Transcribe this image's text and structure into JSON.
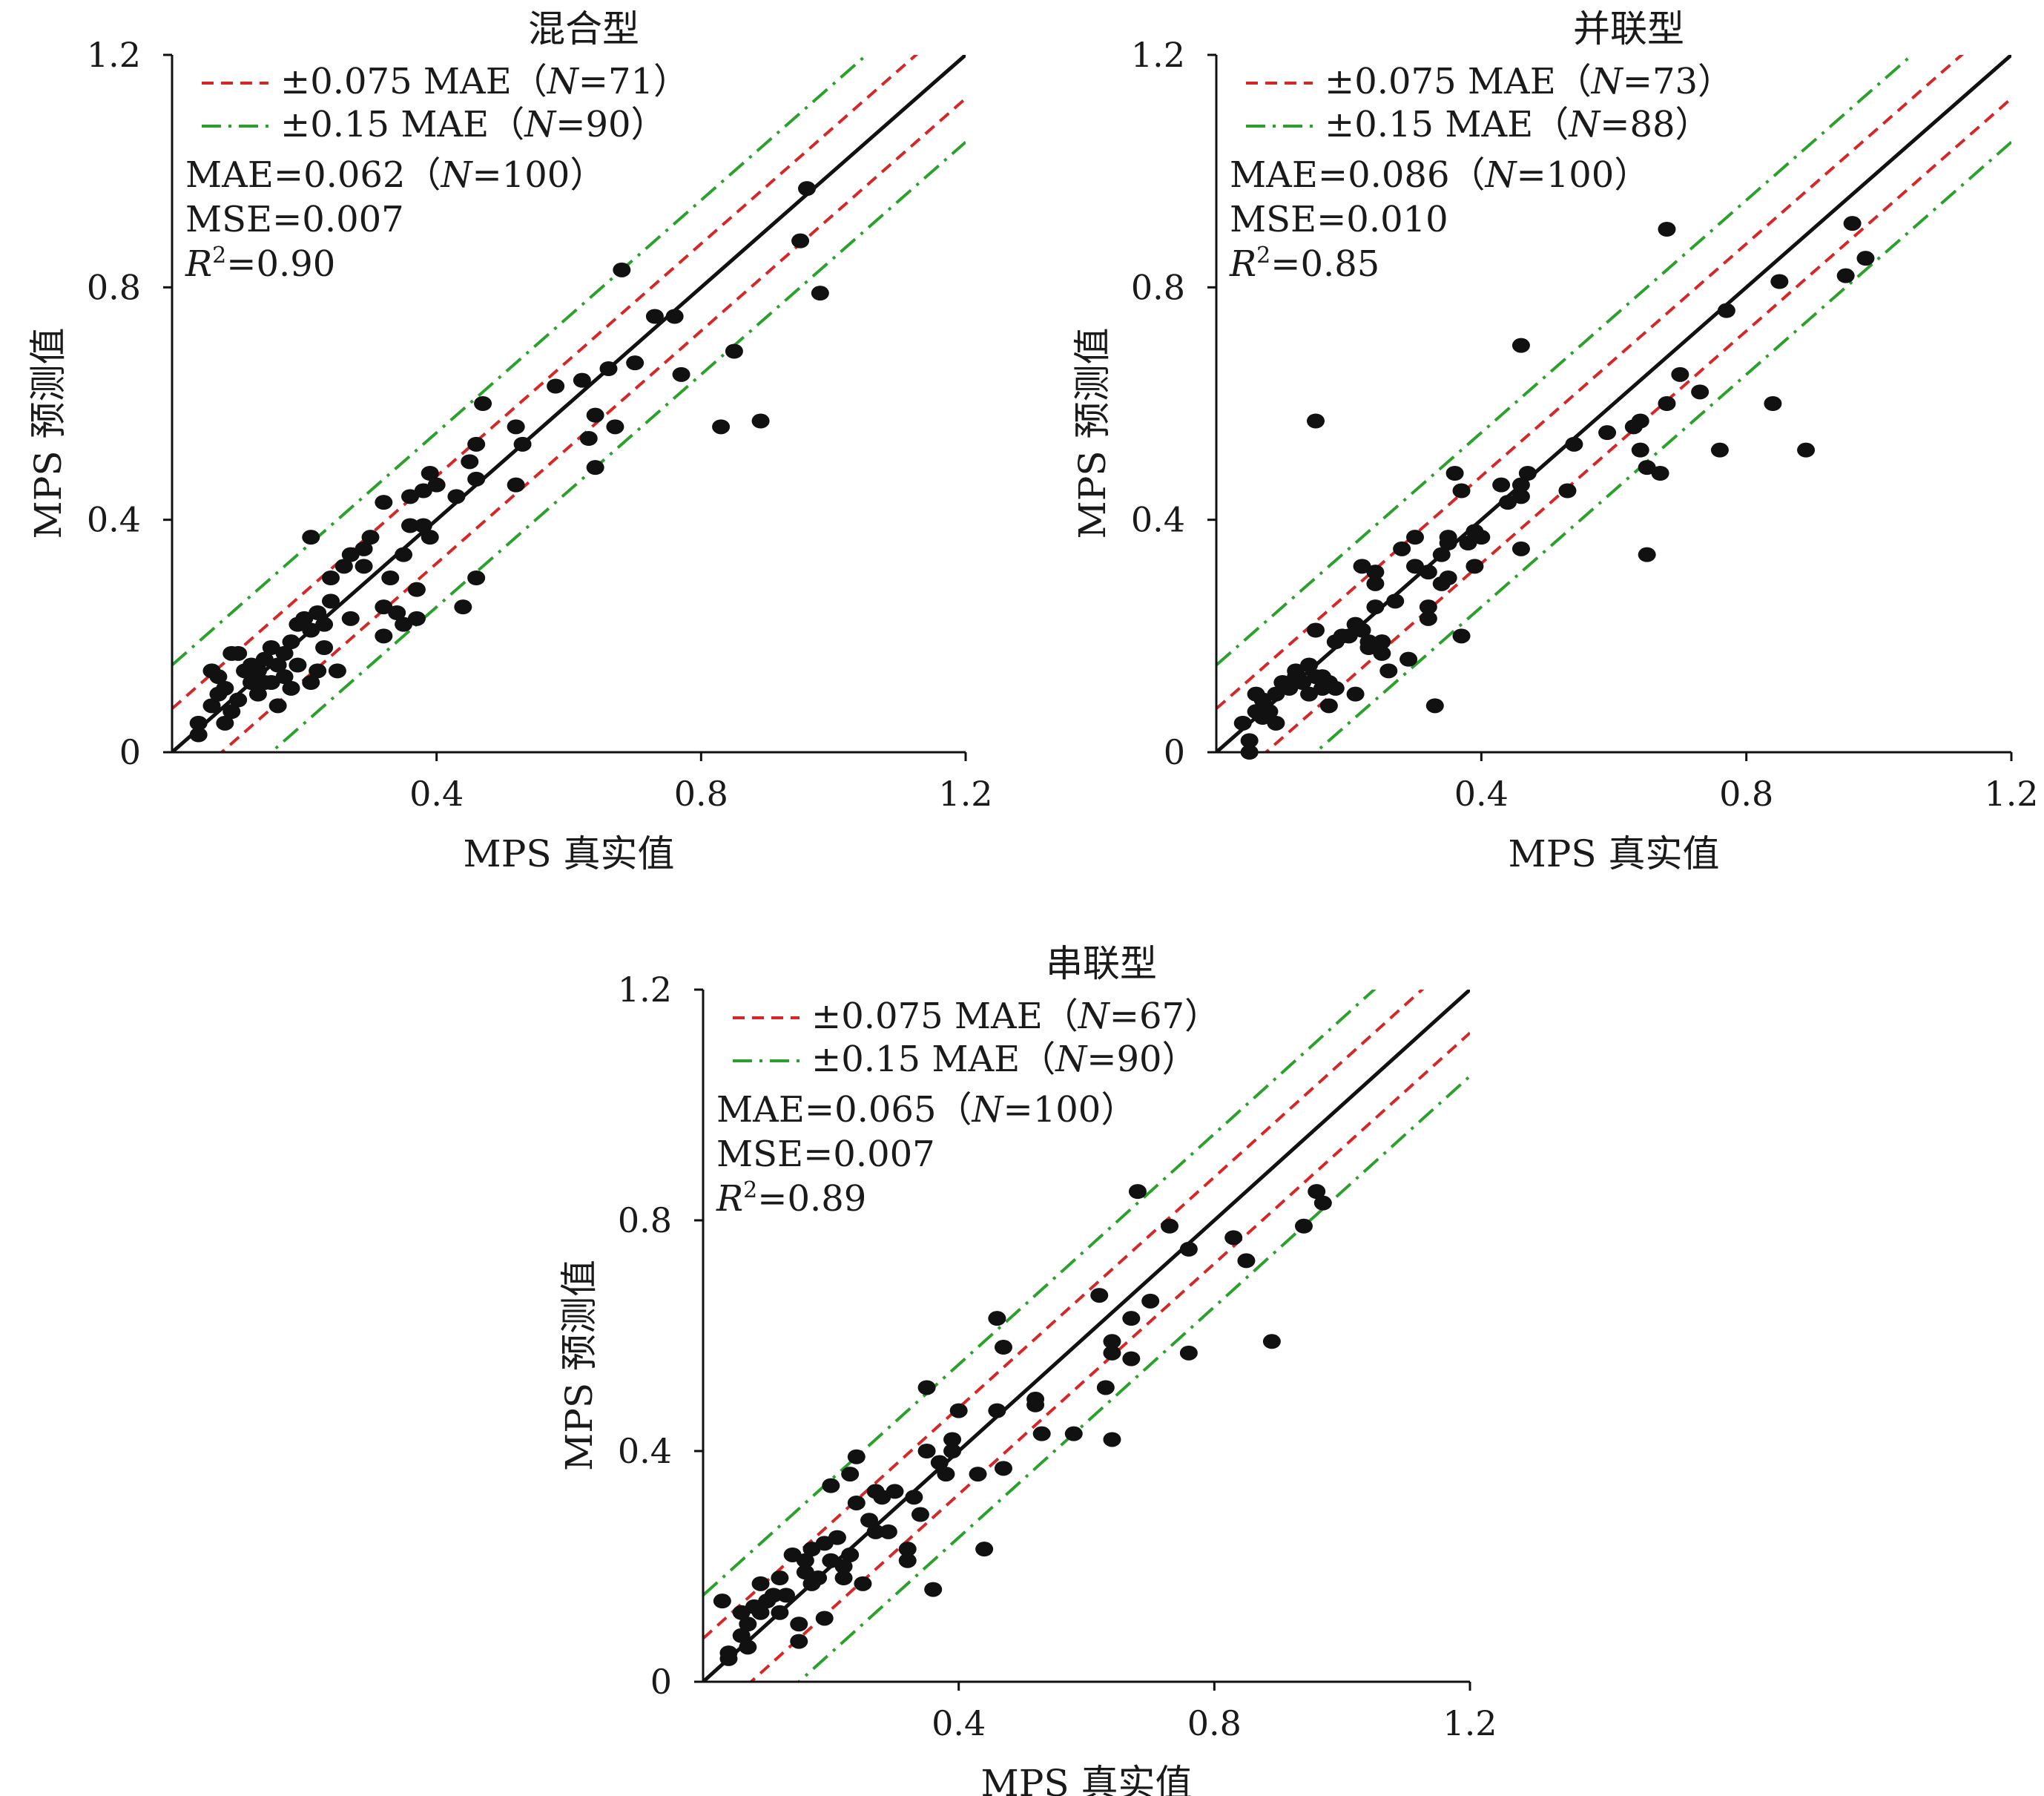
{
  "chart_data": [
    {
      "type": "scatter",
      "title": "混合型",
      "xlabel": "MPS 真实值",
      "ylabel": "MPS 预测值",
      "xlim": [
        0,
        1.2
      ],
      "ylim": [
        0,
        1.2
      ],
      "x_ticks": [
        "0.4",
        "0.8",
        "1.2"
      ],
      "y_ticks": [
        "0",
        "0.4",
        "0.8",
        "1.2"
      ],
      "legend": [
        {
          "label": "±0.075 MAE（N=71）",
          "style": "dashed",
          "color": "#d62728"
        },
        {
          "label": "±0.15 MAE（N=90）",
          "style": "dashdot",
          "color": "#2ca02c"
        }
      ],
      "stats": [
        "MAE=0.062（N=100）",
        "MSE=0.007",
        "R²=0.90"
      ],
      "bands": {
        "inner": 0.075,
        "outer": 0.15,
        "inner_color": "#d62728",
        "outer_color": "#2ca02c"
      },
      "points": [
        [
          0.04,
          0.05
        ],
        [
          0.04,
          0.03
        ],
        [
          0.06,
          0.08
        ],
        [
          0.06,
          0.14
        ],
        [
          0.07,
          0.1
        ],
        [
          0.07,
          0.13
        ],
        [
          0.08,
          0.11
        ],
        [
          0.08,
          0.05
        ],
        [
          0.09,
          0.17
        ],
        [
          0.09,
          0.07
        ],
        [
          0.1,
          0.09
        ],
        [
          0.1,
          0.17
        ],
        [
          0.11,
          0.14
        ],
        [
          0.12,
          0.12
        ],
        [
          0.12,
          0.15
        ],
        [
          0.13,
          0.1
        ],
        [
          0.13,
          0.14
        ],
        [
          0.14,
          0.16
        ],
        [
          0.14,
          0.12
        ],
        [
          0.15,
          0.18
        ],
        [
          0.15,
          0.12
        ],
        [
          0.16,
          0.15
        ],
        [
          0.16,
          0.08
        ],
        [
          0.17,
          0.13
        ],
        [
          0.17,
          0.17
        ],
        [
          0.18,
          0.19
        ],
        [
          0.18,
          0.11
        ],
        [
          0.19,
          0.22
        ],
        [
          0.19,
          0.15
        ],
        [
          0.2,
          0.23
        ],
        [
          0.21,
          0.37
        ],
        [
          0.21,
          0.21
        ],
        [
          0.21,
          0.12
        ],
        [
          0.22,
          0.24
        ],
        [
          0.22,
          0.14
        ],
        [
          0.23,
          0.22
        ],
        [
          0.23,
          0.18
        ],
        [
          0.24,
          0.3
        ],
        [
          0.24,
          0.26
        ],
        [
          0.25,
          0.14
        ],
        [
          0.26,
          0.32
        ],
        [
          0.27,
          0.23
        ],
        [
          0.27,
          0.34
        ],
        [
          0.29,
          0.35
        ],
        [
          0.29,
          0.32
        ],
        [
          0.3,
          0.37
        ],
        [
          0.32,
          0.43
        ],
        [
          0.32,
          0.2
        ],
        [
          0.32,
          0.25
        ],
        [
          0.33,
          0.3
        ],
        [
          0.34,
          0.24
        ],
        [
          0.35,
          0.34
        ],
        [
          0.35,
          0.22
        ],
        [
          0.36,
          0.44
        ],
        [
          0.36,
          0.39
        ],
        [
          0.37,
          0.28
        ],
        [
          0.37,
          0.23
        ],
        [
          0.38,
          0.45
        ],
        [
          0.38,
          0.39
        ],
        [
          0.39,
          0.48
        ],
        [
          0.39,
          0.37
        ],
        [
          0.4,
          0.46
        ],
        [
          0.43,
          0.44
        ],
        [
          0.44,
          0.25
        ],
        [
          0.45,
          0.5
        ],
        [
          0.46,
          0.53
        ],
        [
          0.46,
          0.47
        ],
        [
          0.46,
          0.3
        ],
        [
          0.47,
          0.6
        ],
        [
          0.52,
          0.46
        ],
        [
          0.52,
          0.56
        ],
        [
          0.53,
          0.53
        ],
        [
          0.58,
          0.63
        ],
        [
          0.62,
          0.64
        ],
        [
          0.63,
          0.54
        ],
        [
          0.64,
          0.58
        ],
        [
          0.64,
          0.49
        ],
        [
          0.66,
          0.66
        ],
        [
          0.67,
          0.56
        ],
        [
          0.68,
          0.83
        ],
        [
          0.7,
          0.67
        ],
        [
          0.73,
          0.75
        ],
        [
          0.76,
          0.75
        ],
        [
          0.77,
          0.65
        ],
        [
          0.83,
          0.56
        ],
        [
          0.85,
          0.69
        ],
        [
          0.89,
          0.57
        ],
        [
          0.95,
          0.88
        ],
        [
          0.96,
          0.97
        ],
        [
          0.98,
          0.79
        ]
      ]
    },
    {
      "type": "scatter",
      "title": "并联型",
      "xlabel": "MPS 真实值",
      "ylabel": "MPS 预测值",
      "xlim": [
        0,
        1.2
      ],
      "ylim": [
        0,
        1.2
      ],
      "x_ticks": [
        "0.4",
        "0.8",
        "1.2"
      ],
      "y_ticks": [
        "0",
        "0.4",
        "0.8",
        "1.2"
      ],
      "legend": [
        {
          "label": "±0.075 MAE（N=73）",
          "style": "dashed",
          "color": "#d62728"
        },
        {
          "label": "±0.15 MAE（N=88）",
          "style": "dashdot",
          "color": "#2ca02c"
        }
      ],
      "stats": [
        "MAE=0.086（N=100）",
        "MSE=0.010",
        "R²=0.85"
      ],
      "bands": {
        "inner": 0.075,
        "outer": 0.15,
        "inner_color": "#d62728",
        "outer_color": "#2ca02c"
      },
      "points": [
        [
          0.04,
          0.05
        ],
        [
          0.05,
          0.02
        ],
        [
          0.05,
          0.0
        ],
        [
          0.06,
          0.07
        ],
        [
          0.06,
          0.1
        ],
        [
          0.07,
          0.09
        ],
        [
          0.07,
          0.06
        ],
        [
          0.08,
          0.07
        ],
        [
          0.09,
          0.1
        ],
        [
          0.09,
          0.05
        ],
        [
          0.1,
          0.12
        ],
        [
          0.11,
          0.11
        ],
        [
          0.12,
          0.14
        ],
        [
          0.12,
          0.13
        ],
        [
          0.13,
          0.12
        ],
        [
          0.14,
          0.1
        ],
        [
          0.14,
          0.15
        ],
        [
          0.15,
          0.13
        ],
        [
          0.15,
          0.21
        ],
        [
          0.15,
          0.57
        ],
        [
          0.16,
          0.11
        ],
        [
          0.16,
          0.13
        ],
        [
          0.17,
          0.08
        ],
        [
          0.17,
          0.12
        ],
        [
          0.18,
          0.11
        ],
        [
          0.18,
          0.19
        ],
        [
          0.19,
          0.2
        ],
        [
          0.2,
          0.2
        ],
        [
          0.21,
          0.22
        ],
        [
          0.21,
          0.1
        ],
        [
          0.22,
          0.21
        ],
        [
          0.22,
          0.32
        ],
        [
          0.23,
          0.18
        ],
        [
          0.23,
          0.19
        ],
        [
          0.24,
          0.25
        ],
        [
          0.24,
          0.29
        ],
        [
          0.24,
          0.31
        ],
        [
          0.25,
          0.19
        ],
        [
          0.25,
          0.17
        ],
        [
          0.26,
          0.14
        ],
        [
          0.27,
          0.26
        ],
        [
          0.28,
          0.35
        ],
        [
          0.29,
          0.16
        ],
        [
          0.3,
          0.32
        ],
        [
          0.3,
          0.37
        ],
        [
          0.32,
          0.31
        ],
        [
          0.32,
          0.25
        ],
        [
          0.32,
          0.23
        ],
        [
          0.33,
          0.08
        ],
        [
          0.34,
          0.34
        ],
        [
          0.34,
          0.29
        ],
        [
          0.35,
          0.36
        ],
        [
          0.35,
          0.37
        ],
        [
          0.35,
          0.3
        ],
        [
          0.36,
          0.48
        ],
        [
          0.37,
          0.45
        ],
        [
          0.37,
          0.2
        ],
        [
          0.38,
          0.36
        ],
        [
          0.39,
          0.38
        ],
        [
          0.39,
          0.32
        ],
        [
          0.4,
          0.37
        ],
        [
          0.43,
          0.46
        ],
        [
          0.44,
          0.43
        ],
        [
          0.46,
          0.44
        ],
        [
          0.46,
          0.46
        ],
        [
          0.46,
          0.7
        ],
        [
          0.46,
          0.35
        ],
        [
          0.47,
          0.48
        ],
        [
          0.53,
          0.45
        ],
        [
          0.54,
          0.53
        ],
        [
          0.59,
          0.55
        ],
        [
          0.63,
          0.56
        ],
        [
          0.64,
          0.52
        ],
        [
          0.64,
          0.57
        ],
        [
          0.65,
          0.49
        ],
        [
          0.65,
          0.34
        ],
        [
          0.67,
          0.48
        ],
        [
          0.68,
          0.6
        ],
        [
          0.68,
          0.9
        ],
        [
          0.7,
          0.65
        ],
        [
          0.73,
          0.62
        ],
        [
          0.76,
          0.52
        ],
        [
          0.77,
          0.76
        ],
        [
          0.84,
          0.6
        ],
        [
          0.85,
          0.81
        ],
        [
          0.89,
          0.52
        ],
        [
          0.95,
          0.82
        ],
        [
          0.96,
          0.91
        ],
        [
          0.98,
          0.85
        ]
      ]
    },
    {
      "type": "scatter",
      "title": "串联型",
      "xlabel": "MPS 真实值",
      "ylabel": "MPS 预测值",
      "xlim": [
        0,
        1.2
      ],
      "ylim": [
        0,
        1.2
      ],
      "x_ticks": [
        "0.4",
        "0.8",
        "1.2"
      ],
      "y_ticks": [
        "0",
        "0.4",
        "0.8",
        "1.2"
      ],
      "legend": [
        {
          "label": "±0.075 MAE（N=67）",
          "style": "dashed",
          "color": "#d62728"
        },
        {
          "label": "±0.15 MAE（N=90）",
          "style": "dashdot",
          "color": "#2ca02c"
        }
      ],
      "stats": [
        "MAE=0.065（N=100）",
        "MSE=0.007",
        "R²=0.89"
      ],
      "bands": {
        "inner": 0.075,
        "outer": 0.15,
        "inner_color": "#d62728",
        "outer_color": "#2ca02c"
      },
      "points": [
        [
          0.03,
          0.14
        ],
        [
          0.04,
          0.04
        ],
        [
          0.04,
          0.05
        ],
        [
          0.06,
          0.12
        ],
        [
          0.06,
          0.08
        ],
        [
          0.07,
          0.1
        ],
        [
          0.07,
          0.06
        ],
        [
          0.08,
          0.13
        ],
        [
          0.09,
          0.17
        ],
        [
          0.09,
          0.12
        ],
        [
          0.1,
          0.14
        ],
        [
          0.11,
          0.15
        ],
        [
          0.12,
          0.18
        ],
        [
          0.12,
          0.12
        ],
        [
          0.13,
          0.15
        ],
        [
          0.14,
          0.22
        ],
        [
          0.15,
          0.1
        ],
        [
          0.15,
          0.07
        ],
        [
          0.16,
          0.21
        ],
        [
          0.16,
          0.19
        ],
        [
          0.17,
          0.17
        ],
        [
          0.17,
          0.23
        ],
        [
          0.18,
          0.18
        ],
        [
          0.19,
          0.24
        ],
        [
          0.19,
          0.11
        ],
        [
          0.2,
          0.21
        ],
        [
          0.2,
          0.34
        ],
        [
          0.21,
          0.25
        ],
        [
          0.22,
          0.18
        ],
        [
          0.22,
          0.2
        ],
        [
          0.23,
          0.36
        ],
        [
          0.23,
          0.22
        ],
        [
          0.24,
          0.39
        ],
        [
          0.24,
          0.31
        ],
        [
          0.25,
          0.17
        ],
        [
          0.26,
          0.28
        ],
        [
          0.27,
          0.26
        ],
        [
          0.27,
          0.33
        ],
        [
          0.28,
          0.32
        ],
        [
          0.29,
          0.26
        ],
        [
          0.3,
          0.33
        ],
        [
          0.32,
          0.23
        ],
        [
          0.32,
          0.21
        ],
        [
          0.33,
          0.32
        ],
        [
          0.34,
          0.29
        ],
        [
          0.35,
          0.51
        ],
        [
          0.35,
          0.4
        ],
        [
          0.36,
          0.16
        ],
        [
          0.37,
          0.38
        ],
        [
          0.38,
          0.36
        ],
        [
          0.39,
          0.42
        ],
        [
          0.39,
          0.4
        ],
        [
          0.4,
          0.47
        ],
        [
          0.43,
          0.36
        ],
        [
          0.44,
          0.23
        ],
        [
          0.46,
          0.63
        ],
        [
          0.46,
          0.47
        ],
        [
          0.47,
          0.58
        ],
        [
          0.47,
          0.37
        ],
        [
          0.52,
          0.48
        ],
        [
          0.52,
          0.49
        ],
        [
          0.53,
          0.43
        ],
        [
          0.58,
          0.43
        ],
        [
          0.62,
          0.67
        ],
        [
          0.63,
          0.51
        ],
        [
          0.64,
          0.42
        ],
        [
          0.64,
          0.57
        ],
        [
          0.64,
          0.59
        ],
        [
          0.67,
          0.56
        ],
        [
          0.67,
          0.63
        ],
        [
          0.68,
          0.85
        ],
        [
          0.7,
          0.66
        ],
        [
          0.73,
          0.79
        ],
        [
          0.76,
          0.75
        ],
        [
          0.76,
          0.57
        ],
        [
          0.83,
          0.77
        ],
        [
          0.85,
          0.73
        ],
        [
          0.89,
          0.59
        ],
        [
          0.94,
          0.79
        ],
        [
          0.96,
          0.85
        ],
        [
          0.97,
          0.83
        ]
      ]
    }
  ]
}
